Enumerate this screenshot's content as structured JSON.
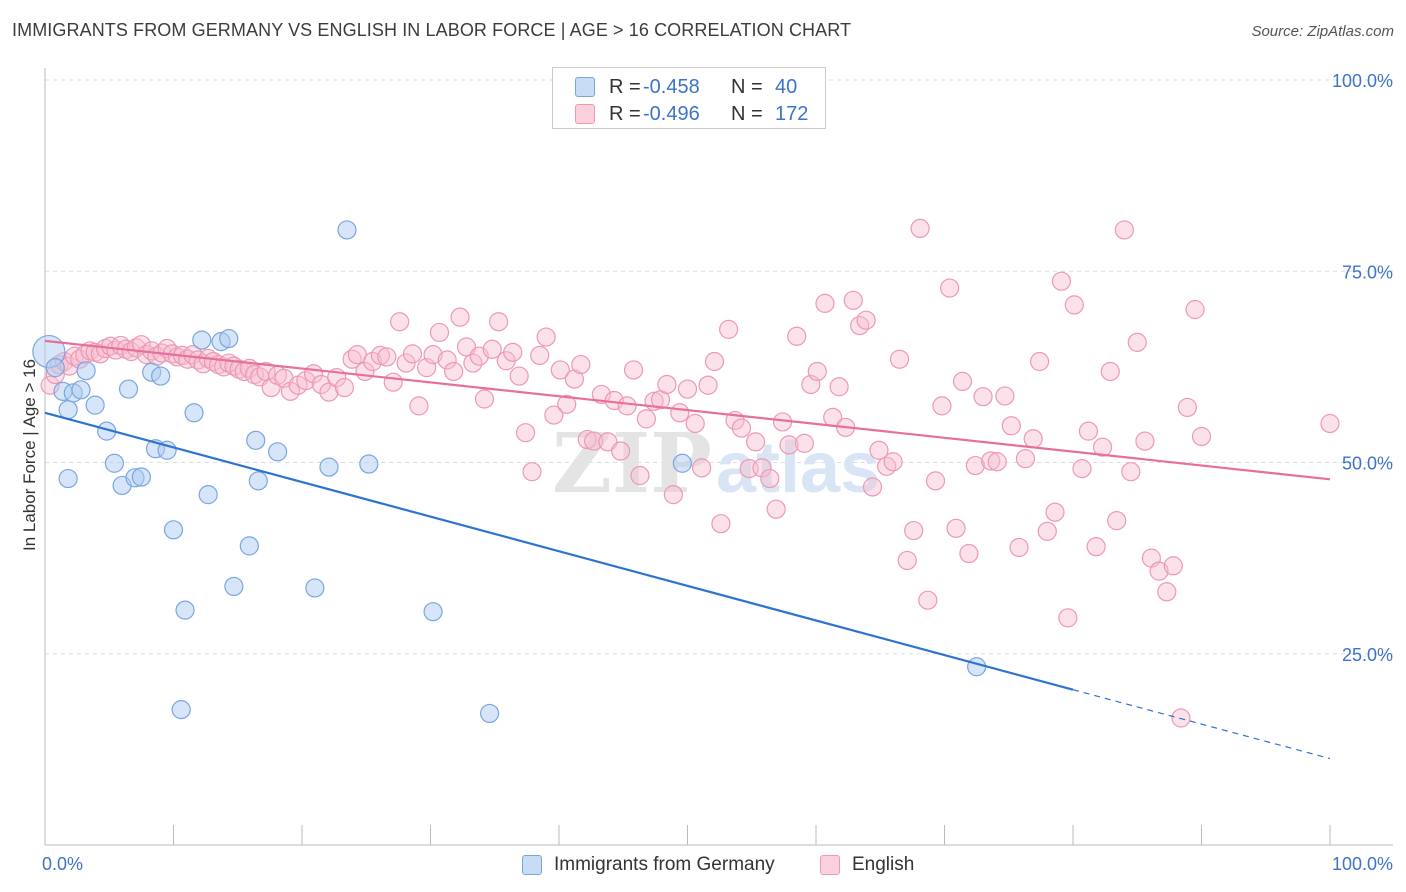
{
  "header": {
    "title": "IMMIGRANTS FROM GERMANY VS ENGLISH IN LABOR FORCE | AGE > 16 CORRELATION CHART",
    "source": "Source: ZipAtlas.com"
  },
  "legend": {
    "series": [
      {
        "r_label": "R =",
        "r_value": "-0.458",
        "n_label": "N =",
        "n_value": "40"
      },
      {
        "r_label": "R =",
        "r_value": "-0.496",
        "n_label": "N =",
        "n_value": "172"
      }
    ]
  },
  "bottom_legend": {
    "items": [
      "Immigrants from Germany",
      "English"
    ]
  },
  "colors": {
    "germany_fill": "#aecbf0",
    "germany_stroke": "#7aa6e0",
    "germany_line": "#2f73d0",
    "english_fill": "#f6bfd0",
    "english_stroke": "#ee98b4",
    "english_line": "#e7709a",
    "axis_label": "#3d73c9"
  },
  "chart_data": {
    "type": "scatter",
    "title": "IMMIGRANTS FROM GERMANY VS ENGLISH IN LABOR FORCE | AGE > 16 CORRELATION CHART",
    "xlabel": "",
    "ylabel": "In Labor Force | Age > 16",
    "xlim": [
      0,
      100
    ],
    "ylim": [
      0,
      100
    ],
    "x_tick_labels": [
      "0.0%",
      "100.0%"
    ],
    "y_tick_labels": [
      "25.0%",
      "50.0%",
      "75.0%",
      "100.0%"
    ],
    "y_ticks": [
      25,
      50,
      75,
      100
    ],
    "grid": true,
    "watermark": "ZIPatlas",
    "series": [
      {
        "name": "Immigrants from Germany",
        "points": [
          [
            0.3,
            64.5
          ],
          [
            0.8,
            62.4
          ],
          [
            1.4,
            59.3
          ],
          [
            1.8,
            56.9
          ],
          [
            2.2,
            59.1
          ],
          [
            2.8,
            59.5
          ],
          [
            3.2,
            62.0
          ],
          [
            3.9,
            57.5
          ],
          [
            4.8,
            54.1
          ],
          [
            5.4,
            49.9
          ],
          [
            6.0,
            47.0
          ],
          [
            6.5,
            59.6
          ],
          [
            7.0,
            48.0
          ],
          [
            7.5,
            48.1
          ],
          [
            1.8,
            47.9
          ],
          [
            8.3,
            61.8
          ],
          [
            8.6,
            51.8
          ],
          [
            9.0,
            61.3
          ],
          [
            9.5,
            51.6
          ],
          [
            10.0,
            41.2
          ],
          [
            10.9,
            30.7
          ],
          [
            10.6,
            17.7
          ],
          [
            11.6,
            56.5
          ],
          [
            12.2,
            66.0
          ],
          [
            12.7,
            45.8
          ],
          [
            13.7,
            65.8
          ],
          [
            14.3,
            66.2
          ],
          [
            14.7,
            33.8
          ],
          [
            15.9,
            39.1
          ],
          [
            16.4,
            52.9
          ],
          [
            16.6,
            47.6
          ],
          [
            18.1,
            51.4
          ],
          [
            21.0,
            33.6
          ],
          [
            22.1,
            49.4
          ],
          [
            23.5,
            80.4
          ],
          [
            25.2,
            49.8
          ],
          [
            30.2,
            30.5
          ],
          [
            34.6,
            17.2
          ],
          [
            49.6,
            49.9
          ],
          [
            72.5,
            23.3
          ]
        ],
        "trend": {
          "x": [
            0,
            80
          ],
          "y": [
            56.5,
            20.3
          ],
          "dashed_to": [
            100,
            11.3
          ]
        }
      },
      {
        "name": "English",
        "points": [
          [
            0.4,
            60.1
          ],
          [
            0.8,
            61.5
          ],
          [
            1.1,
            62.8
          ],
          [
            1.5,
            63.2
          ],
          [
            1.9,
            62.6
          ],
          [
            2.3,
            63.9
          ],
          [
            2.7,
            63.5
          ],
          [
            3.1,
            64.1
          ],
          [
            3.5,
            64.6
          ],
          [
            3.9,
            64.4
          ],
          [
            4.3,
            64.2
          ],
          [
            4.7,
            64.9
          ],
          [
            5.1,
            65.2
          ],
          [
            5.5,
            64.7
          ],
          [
            5.9,
            65.3
          ],
          [
            6.3,
            64.8
          ],
          [
            6.7,
            64.5
          ],
          [
            7.1,
            65.0
          ],
          [
            7.5,
            65.4
          ],
          [
            7.9,
            64.1
          ],
          [
            8.3,
            64.6
          ],
          [
            8.7,
            63.9
          ],
          [
            9.1,
            64.3
          ],
          [
            9.5,
            64.9
          ],
          [
            9.9,
            64.2
          ],
          [
            10.3,
            63.8
          ],
          [
            10.7,
            64.0
          ],
          [
            11.1,
            63.5
          ],
          [
            11.5,
            64.1
          ],
          [
            11.9,
            63.4
          ],
          [
            12.3,
            62.9
          ],
          [
            12.7,
            63.6
          ],
          [
            13.1,
            63.2
          ],
          [
            13.5,
            62.8
          ],
          [
            13.9,
            62.5
          ],
          [
            14.3,
            63.0
          ],
          [
            14.7,
            62.6
          ],
          [
            15.1,
            62.2
          ],
          [
            15.5,
            61.9
          ],
          [
            15.9,
            62.3
          ],
          [
            16.3,
            61.5
          ],
          [
            16.7,
            61.2
          ],
          [
            17.2,
            61.9
          ],
          [
            17.6,
            59.8
          ],
          [
            18.1,
            61.4
          ],
          [
            18.6,
            61.0
          ],
          [
            19.1,
            59.3
          ],
          [
            19.7,
            60.1
          ],
          [
            20.3,
            60.7
          ],
          [
            20.9,
            61.6
          ],
          [
            21.5,
            60.2
          ],
          [
            22.1,
            59.2
          ],
          [
            22.7,
            61.1
          ],
          [
            23.3,
            59.8
          ],
          [
            23.9,
            63.5
          ],
          [
            24.3,
            64.1
          ],
          [
            24.9,
            61.9
          ],
          [
            25.5,
            63.2
          ],
          [
            26.1,
            64.0
          ],
          [
            26.6,
            63.8
          ],
          [
            27.1,
            60.5
          ],
          [
            27.6,
            68.4
          ],
          [
            28.1,
            63.0
          ],
          [
            28.6,
            64.2
          ],
          [
            29.1,
            57.4
          ],
          [
            29.7,
            62.4
          ],
          [
            30.2,
            64.1
          ],
          [
            30.7,
            67.0
          ],
          [
            31.3,
            63.4
          ],
          [
            31.8,
            61.9
          ],
          [
            32.3,
            69.0
          ],
          [
            32.8,
            65.1
          ],
          [
            33.3,
            63.0
          ],
          [
            33.8,
            63.9
          ],
          [
            34.2,
            58.3
          ],
          [
            34.8,
            64.8
          ],
          [
            35.3,
            68.4
          ],
          [
            35.9,
            63.3
          ],
          [
            36.4,
            64.4
          ],
          [
            36.9,
            61.3
          ],
          [
            37.4,
            53.9
          ],
          [
            37.9,
            48.8
          ],
          [
            38.5,
            64.0
          ],
          [
            39.0,
            66.4
          ],
          [
            39.6,
            56.2
          ],
          [
            40.1,
            62.1
          ],
          [
            40.6,
            57.6
          ],
          [
            41.2,
            60.9
          ],
          [
            41.7,
            62.8
          ],
          [
            42.2,
            53.0
          ],
          [
            42.7,
            52.8
          ],
          [
            43.3,
            58.9
          ],
          [
            43.8,
            52.7
          ],
          [
            44.3,
            58.1
          ],
          [
            44.8,
            51.5
          ],
          [
            45.3,
            57.4
          ],
          [
            45.8,
            62.1
          ],
          [
            46.3,
            48.3
          ],
          [
            46.8,
            55.7
          ],
          [
            47.4,
            58.0
          ],
          [
            47.9,
            58.2
          ],
          [
            48.4,
            60.2
          ],
          [
            48.9,
            45.8
          ],
          [
            49.4,
            56.5
          ],
          [
            50.0,
            59.6
          ],
          [
            50.6,
            55.1
          ],
          [
            51.1,
            49.3
          ],
          [
            51.6,
            60.1
          ],
          [
            52.1,
            63.2
          ],
          [
            52.6,
            42.0
          ],
          [
            53.2,
            67.4
          ],
          [
            53.7,
            55.5
          ],
          [
            54.2,
            54.5
          ],
          [
            54.8,
            49.2
          ],
          [
            55.3,
            52.7
          ],
          [
            55.8,
            49.3
          ],
          [
            56.4,
            47.9
          ],
          [
            56.9,
            43.9
          ],
          [
            57.4,
            55.3
          ],
          [
            57.9,
            52.3
          ],
          [
            58.5,
            66.5
          ],
          [
            59.1,
            52.5
          ],
          [
            59.6,
            60.2
          ],
          [
            60.1,
            61.9
          ],
          [
            60.7,
            70.8
          ],
          [
            61.3,
            55.9
          ],
          [
            61.8,
            59.9
          ],
          [
            62.3,
            54.6
          ],
          [
            62.9,
            71.2
          ],
          [
            63.4,
            67.9
          ],
          [
            63.9,
            68.6
          ],
          [
            64.4,
            46.8
          ],
          [
            64.9,
            51.6
          ],
          [
            65.5,
            49.5
          ],
          [
            66.0,
            50.1
          ],
          [
            66.5,
            63.5
          ],
          [
            67.1,
            37.2
          ],
          [
            67.6,
            41.1
          ],
          [
            68.1,
            80.6
          ],
          [
            68.7,
            32.0
          ],
          [
            69.3,
            47.6
          ],
          [
            69.8,
            57.4
          ],
          [
            70.4,
            72.8
          ],
          [
            70.9,
            41.4
          ],
          [
            71.4,
            60.6
          ],
          [
            71.9,
            38.1
          ],
          [
            72.4,
            49.6
          ],
          [
            73.0,
            58.6
          ],
          [
            73.6,
            50.2
          ],
          [
            74.1,
            50.1
          ],
          [
            74.7,
            58.7
          ],
          [
            75.2,
            54.8
          ],
          [
            75.8,
            38.9
          ],
          [
            76.3,
            50.5
          ],
          [
            76.9,
            53.1
          ],
          [
            77.4,
            63.2
          ],
          [
            78.0,
            41.0
          ],
          [
            78.6,
            43.5
          ],
          [
            79.1,
            73.7
          ],
          [
            79.6,
            29.7
          ],
          [
            80.1,
            70.6
          ],
          [
            80.7,
            49.2
          ],
          [
            81.2,
            54.1
          ],
          [
            81.8,
            39.0
          ],
          [
            82.3,
            52.0
          ],
          [
            82.9,
            61.9
          ],
          [
            83.4,
            42.4
          ],
          [
            84.0,
            80.4
          ],
          [
            84.5,
            48.8
          ],
          [
            85.0,
            65.7
          ],
          [
            85.6,
            52.8
          ],
          [
            86.1,
            37.5
          ],
          [
            86.7,
            35.8
          ],
          [
            87.3,
            33.1
          ],
          [
            87.8,
            36.5
          ],
          [
            88.4,
            16.6
          ],
          [
            88.9,
            57.2
          ],
          [
            89.5,
            70.0
          ],
          [
            90.0,
            53.4
          ],
          [
            100.0,
            55.1
          ]
        ],
        "trend": {
          "x": [
            0,
            100
          ],
          "y": [
            65.9,
            47.8
          ]
        }
      }
    ]
  }
}
